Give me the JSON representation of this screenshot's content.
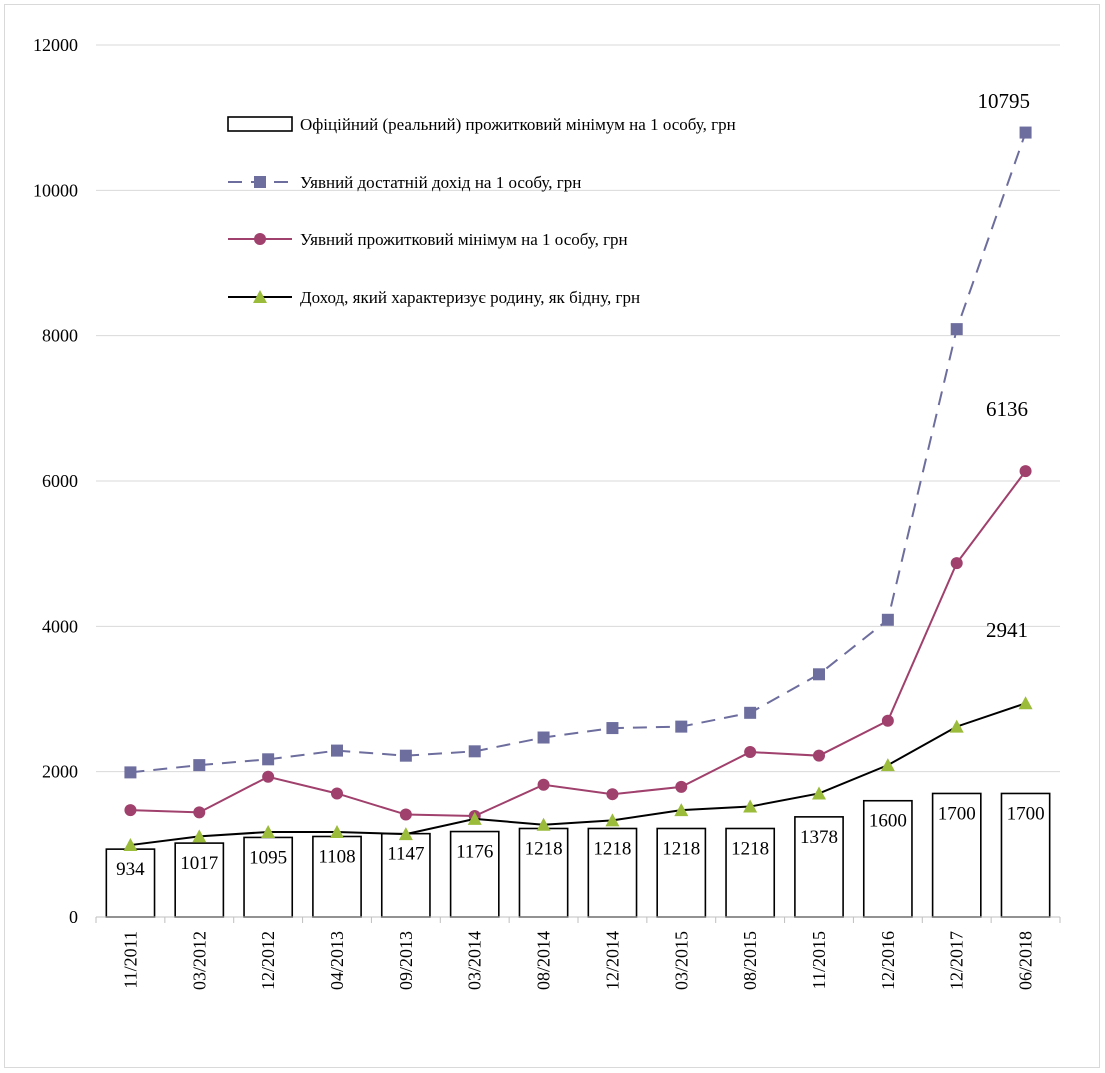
{
  "chart_data": {
    "type": "bar",
    "categories": [
      "11/2011",
      "03/2012",
      "12/2012",
      "04/2013",
      "09/2013",
      "03/2014",
      "08/2014",
      "12/2014",
      "03/2015",
      "08/2015",
      "11/2015",
      "12/2016",
      "12/2017",
      "06/2018"
    ],
    "ylim": [
      0,
      12000
    ],
    "y_ticks": [
      0,
      2000,
      4000,
      6000,
      8000,
      10000,
      12000
    ],
    "grid": true,
    "legend_position": "top-left inside plot",
    "series": [
      {
        "name": "Офіційний (реальний) прожитковий  мінімум на 1 особу, грн",
        "type": "bar",
        "color": "#000000",
        "fill": "#ffffff",
        "values": [
          934,
          1017,
          1095,
          1108,
          1147,
          1176,
          1218,
          1218,
          1218,
          1218,
          1378,
          1600,
          1700,
          1700
        ],
        "labels": [
          "934",
          "1017",
          "1095",
          "1108",
          "1147",
          "1176",
          "1218",
          "1218",
          "1218",
          "1218",
          "1378",
          "1600",
          "1700",
          "1700"
        ]
      },
      {
        "name": "Уявний достатній дохід на 1 особу, грн",
        "type": "line",
        "style": "dashed",
        "marker": "square",
        "color": "#6d6d9e",
        "values": [
          1990,
          2090,
          2170,
          2290,
          2220,
          2280,
          2470,
          2600,
          2620,
          2810,
          3340,
          4090,
          8090,
          10795
        ],
        "end_label": "10795"
      },
      {
        "name": "Уявний прожитковий мінімум на 1 особу, грн",
        "type": "line",
        "style": "solid",
        "marker": "circle",
        "color": "#a0406c",
        "values": [
          1470,
          1440,
          1930,
          1700,
          1410,
          1390,
          1820,
          1690,
          1790,
          2270,
          2220,
          2700,
          4870,
          6136
        ],
        "end_label": "6136"
      },
      {
        "name": "Доход, який характеризує родину, як бідну, грн",
        "type": "line",
        "style": "solid",
        "marker": "triangle",
        "color": "#000000",
        "marker_color": "#9bbb3b",
        "values": [
          990,
          1110,
          1170,
          1170,
          1140,
          1350,
          1270,
          1330,
          1470,
          1520,
          1700,
          2090,
          2620,
          2941
        ],
        "end_label": "2941"
      }
    ]
  }
}
